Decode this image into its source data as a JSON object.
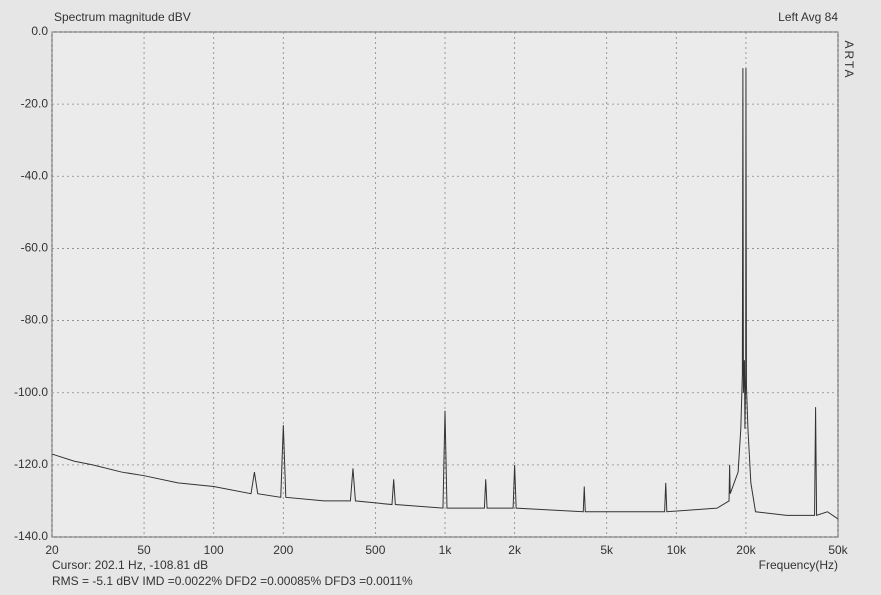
{
  "chart_data": {
    "type": "line",
    "title": "Spectrum magnitude dBV",
    "status": "Left  Avg 84",
    "brand": "ARTA",
    "x_label": "Frequency(Hz)",
    "cursor_text": "Cursor:  202.1 Hz, -108.81 dB",
    "summary_text": "RMS =  -5.1 dBV  IMD =0.0022%  DFD2 =0.00085%  DFD3 =0.0011%",
    "log_x": true,
    "grid": true,
    "xlim": [
      20,
      50000
    ],
    "ylim": [
      -140,
      0
    ],
    "xticks": [
      20,
      50,
      100,
      200,
      500,
      {
        "value": 1000,
        "label": "1k"
      },
      {
        "value": 2000,
        "label": "2k"
      },
      {
        "value": 5000,
        "label": "5k"
      },
      {
        "value": 10000,
        "label": "10k"
      },
      {
        "value": 20000,
        "label": "20k"
      },
      {
        "value": 50000,
        "label": "50k"
      }
    ],
    "yticks": [
      {
        "value": 0,
        "label": "0.0"
      },
      {
        "value": -20,
        "label": "-20.0"
      },
      {
        "value": -40,
        "label": "-40.0"
      },
      {
        "value": -60,
        "label": "-60.0"
      },
      {
        "value": -80,
        "label": "-80.0"
      },
      {
        "value": -100,
        "label": "-100.0"
      },
      {
        "value": -120,
        "label": "-120.0"
      },
      {
        "value": -140,
        "label": "-140.0"
      }
    ],
    "series": [
      {
        "color": "#333333",
        "x": [
          20,
          25,
          30,
          40,
          50,
          70,
          100,
          145,
          150,
          155,
          195,
          200,
          205,
          300,
          390,
          400,
          410,
          590,
          600,
          610,
          980,
          1000,
          1020,
          1480,
          1500,
          1520,
          1970,
          2000,
          2030,
          3960,
          4000,
          4040,
          8900,
          9000,
          9100,
          15000,
          16900,
          17000,
          17100,
          18500,
          19000,
          19300,
          19400,
          19500,
          19700,
          19800,
          19950,
          20000,
          20100,
          20400,
          21000,
          22000,
          30000,
          39600,
          40000,
          40400,
          45000,
          50000
        ],
        "values": [
          -117,
          -119,
          -120,
          -122,
          -123,
          -125,
          -126,
          -128,
          -122,
          -128,
          -129,
          -109,
          -129,
          -130,
          -130,
          -121,
          -130,
          -131,
          -124,
          -131,
          -132,
          -105,
          -132,
          -132,
          -124,
          -132,
          -132,
          -120,
          -132,
          -133,
          -126,
          -133,
          -133,
          -125,
          -133,
          -132,
          -130,
          -120,
          -128,
          -122,
          -110,
          -95,
          -10,
          -100,
          -91,
          -110,
          -95,
          -10,
          -98,
          -110,
          -125,
          -133,
          -134,
          -134,
          -104,
          -134,
          -133,
          -135
        ]
      }
    ]
  }
}
